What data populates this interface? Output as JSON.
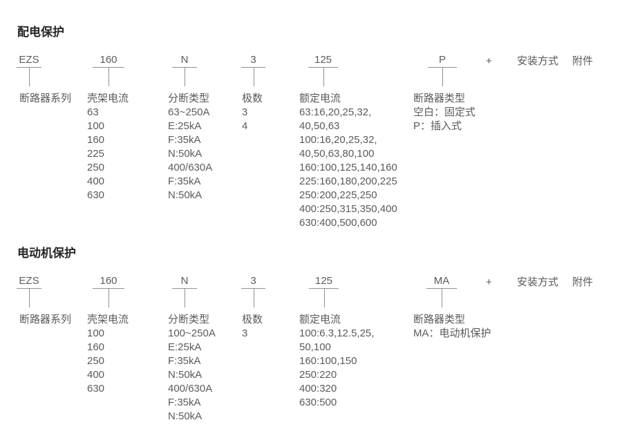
{
  "colors": {
    "background": "#ffffff",
    "body_text": "#5a5a5a",
    "title_text": "#262626",
    "connector_line": "#8f8f8f"
  },
  "sections": [
    {
      "title": "配电保护",
      "plus": "+",
      "mounting": "安装方式",
      "accessory": "附件",
      "codes": [
        {
          "code": "EZS",
          "label": "断路器系列",
          "items": []
        },
        {
          "code": "160",
          "label": "壳架电流",
          "items": [
            "63",
            "100",
            "160",
            "225",
            "250",
            "400",
            "630"
          ]
        },
        {
          "code": "N",
          "label": "分断类型",
          "items": [
            "63~250A",
            "E:25kA",
            "F:35kA",
            "N:50kA",
            "400/630A",
            "F:35kA",
            "N:50kA"
          ]
        },
        {
          "code": "3",
          "label": "极数",
          "items": [
            "3",
            "4"
          ]
        },
        {
          "code": "125",
          "label": "额定电流",
          "items": [
            "63:16,20,25,32,",
            "40,50,63",
            "100:16,20,25,32,",
            "40,50,63,80,100",
            "160:100,125,140,160",
            "225:160,180,200,225",
            "250:200,225,250",
            "400:250,315,350,400",
            "630:400,500,600"
          ]
        },
        {
          "code": "P",
          "label": "断路器类型",
          "items": [
            "空白：固定式",
            "P：插入式"
          ]
        }
      ]
    },
    {
      "title": "电动机保护",
      "plus": "+",
      "mounting": "安装方式",
      "accessory": "附件",
      "codes": [
        {
          "code": "EZS",
          "label": "断路器系列",
          "items": []
        },
        {
          "code": "160",
          "label": "壳架电流",
          "items": [
            "100",
            "160",
            "250",
            "400",
            "630"
          ]
        },
        {
          "code": "N",
          "label": "分断类型",
          "items": [
            "100~250A",
            "E:25kA",
            "F:35kA",
            "N:50kA",
            "400/630A",
            "F:35kA",
            "N:50kA"
          ]
        },
        {
          "code": "3",
          "label": "极数",
          "items": [
            "3"
          ]
        },
        {
          "code": "125",
          "label": "额定电流",
          "items": [
            "100:6.3,12.5,25,",
            "50,100",
            "160:100,150",
            "250:220",
            "400:320",
            "630:500"
          ]
        },
        {
          "code": "MA",
          "label": "断路器类型",
          "items": [
            "MA：电动机保护"
          ]
        }
      ]
    }
  ]
}
